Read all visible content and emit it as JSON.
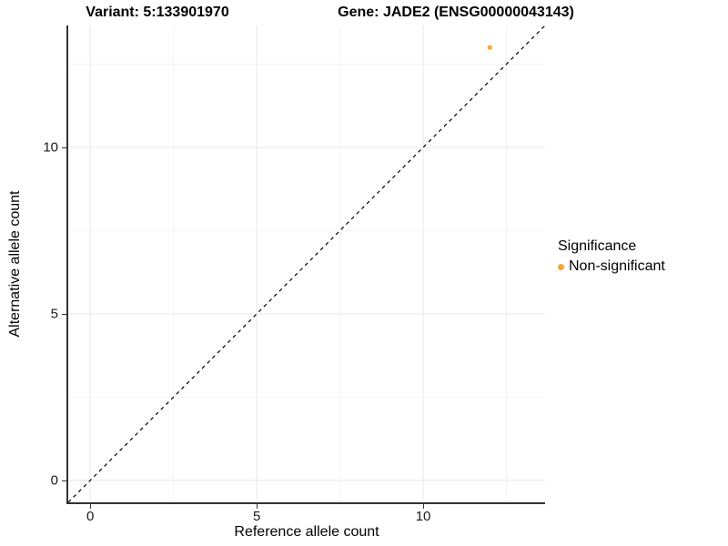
{
  "titles": {
    "variant": "Variant: 5:133901970",
    "gene": "Gene: JADE2 (ENSG00000043143)"
  },
  "axes": {
    "x_label": "Reference allele count",
    "y_label": "Alternative allele count"
  },
  "legend": {
    "title": "Significance",
    "items": [
      {
        "label": "Non-significant",
        "color": "#FAA53C"
      }
    ]
  },
  "colors": {
    "background": "#FFFFFF",
    "point": "#FAA53C",
    "identity_line": "#000000",
    "grid_major": "#E9E9E9",
    "grid_minor": "#F4F4F4",
    "axis_line": "#333333",
    "tick_label": "#1A1A1A"
  },
  "chart_data": {
    "type": "scatter",
    "title": "Variant: 5:133901970 | Gene: JADE2 (ENSG00000043143)",
    "xlabel": "Reference allele count",
    "ylabel": "Alternative allele count",
    "xlim": [
      -0.66,
      13.66
    ],
    "ylim": [
      -0.66,
      13.66
    ],
    "x_ticks": [
      0,
      5,
      10
    ],
    "y_ticks": [
      0,
      5,
      10
    ],
    "x_minor_ticks": [
      2.5,
      7.5,
      12.5
    ],
    "y_minor_ticks": [
      2.5,
      7.5,
      12.5
    ],
    "grid": true,
    "legend_position": "right",
    "series": [
      {
        "name": "Non-significant",
        "color": "#FAA53C",
        "points": [
          {
            "x": 12,
            "y": 13
          }
        ]
      }
    ],
    "reference_line": {
      "type": "identity",
      "equation": "y = x",
      "style": "dashed",
      "color": "#000000"
    }
  }
}
